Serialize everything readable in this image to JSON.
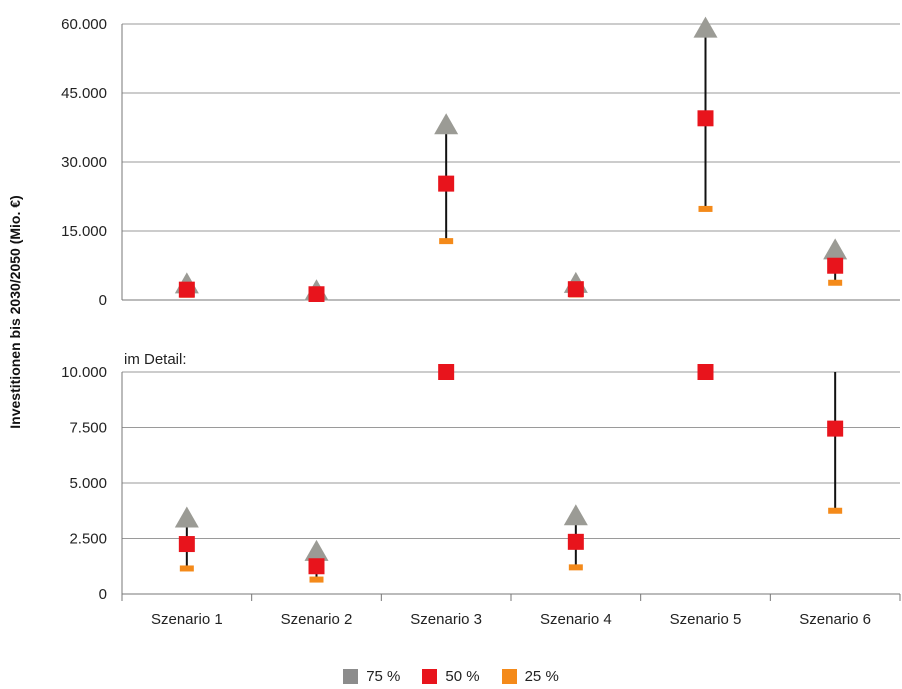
{
  "chart_data": {
    "type": "scatter",
    "ylabel": "Investitionen bis 2030/2050 (Mio. €)",
    "categories": [
      "Szenario 1",
      "Szenario 2",
      "Szenario 3",
      "Szenario 4",
      "Szenario 5",
      "Szenario 6"
    ],
    "series": [
      {
        "name": "75 %",
        "color": "#9b9b95",
        "marker": "triangle",
        "values": [
          3400,
          1900,
          38000,
          3500,
          59000,
          10800
        ]
      },
      {
        "name": "50 %",
        "color": "#e8141c",
        "marker": "square",
        "values": [
          2250,
          1250,
          25300,
          2350,
          39500,
          7450
        ]
      },
      {
        "name": "25 %",
        "color": "#f48a1a",
        "marker": "dash",
        "values": [
          1150,
          650,
          12800,
          1200,
          19800,
          3750
        ]
      }
    ],
    "panels": [
      {
        "ylim": [
          0,
          60000
        ],
        "yticks": [
          "0",
          "15.000",
          "30.000",
          "45.000",
          "60.000"
        ],
        "ytick_values": [
          0,
          15000,
          30000,
          45000,
          60000
        ],
        "note": ""
      },
      {
        "ylim": [
          0,
          10000
        ],
        "yticks": [
          "0",
          "2.500",
          "5.000",
          "7.500",
          "10.000"
        ],
        "ytick_values": [
          0,
          2500,
          5000,
          7500,
          10000
        ],
        "note": "im Detail:"
      }
    ],
    "legend_position": "bottom",
    "grid": true
  }
}
